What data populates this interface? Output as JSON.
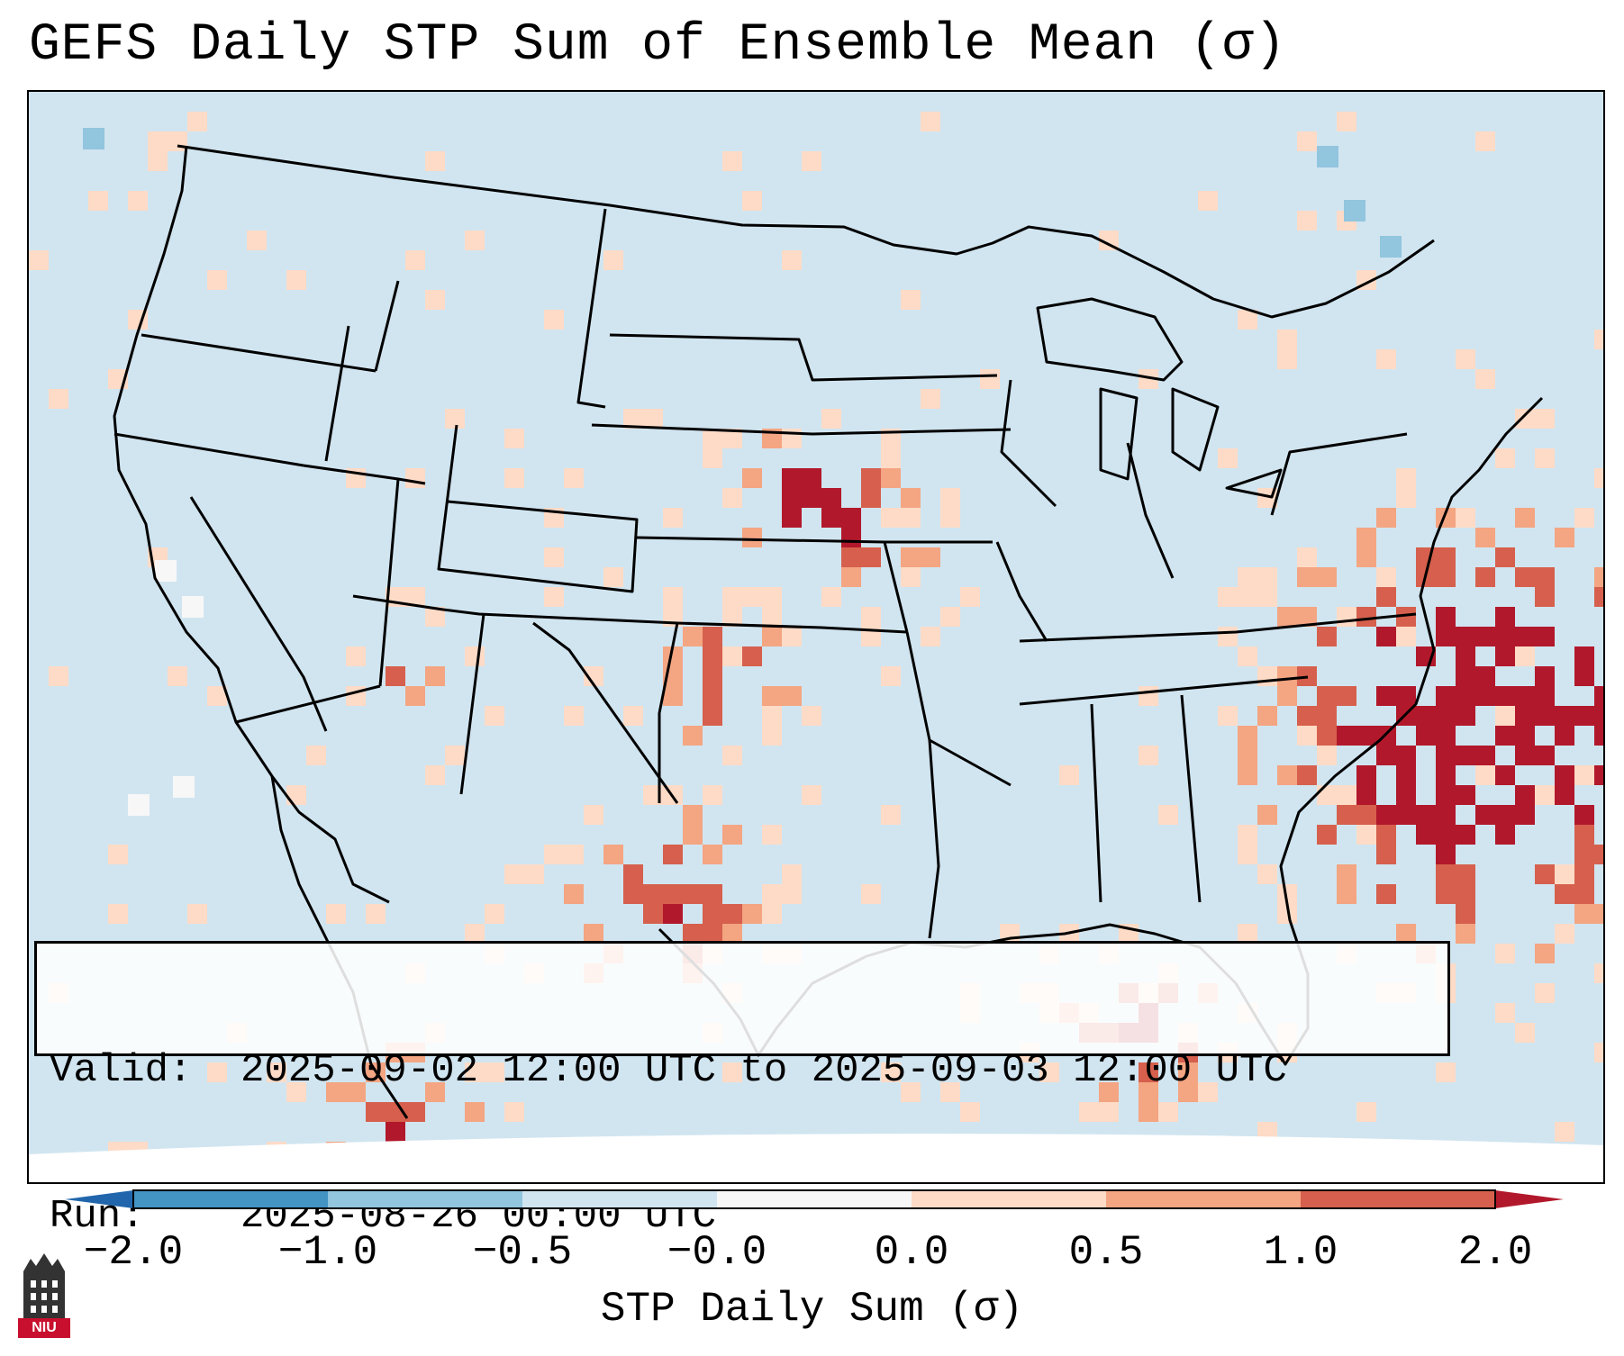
{
  "title": "GEFS Daily STP Sum of Ensemble Mean (σ)",
  "info": {
    "valid_label": "Valid:",
    "valid_value": "2025-09-02 12:00 UTC to 2025-09-03 12:00 UTC",
    "run_label": "Run:",
    "run_value": "2025-08-26 00:00 UTC"
  },
  "colorbar": {
    "label": "STP Daily Sum (σ)",
    "ticks": [
      "−2.0",
      "−1.0",
      "−0.5",
      "−0.0",
      "0.0",
      "0.5",
      "1.0",
      "2.0"
    ],
    "colors": [
      "#4393c3",
      "#92c5de",
      "#d1e5f0",
      "#f7f7f7",
      "#fddbc7",
      "#f4a582",
      "#d6604d"
    ],
    "under_color": "#2166ac",
    "over_color": "#b2182b"
  },
  "logo": {
    "text": "NIU"
  },
  "map": {
    "background": "#d1e5f0",
    "state_line_color": "#000000"
  }
}
